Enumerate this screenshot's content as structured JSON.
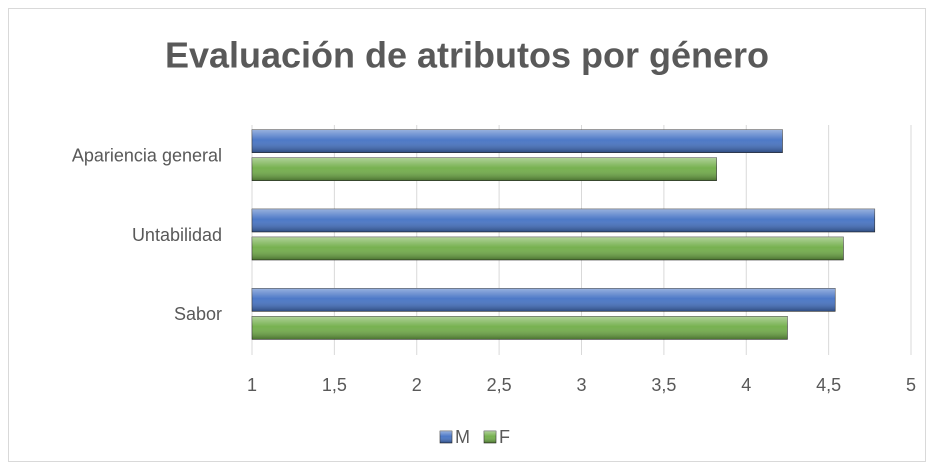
{
  "chart_data": {
    "type": "bar",
    "orientation": "horizontal",
    "title": "Evaluación de atributos por género",
    "categories": [
      "Apariencia general",
      "Untabilidad",
      "Sabor"
    ],
    "series": [
      {
        "name": "M",
        "color": "#4472c4",
        "values": [
          4.22,
          4.78,
          4.54
        ]
      },
      {
        "name": "F",
        "color": "#70ad47",
        "values": [
          3.82,
          4.59,
          4.25
        ]
      }
    ],
    "xlim": [
      1,
      5
    ],
    "xticks": [
      1,
      {
        "value": 1.5,
        "label": "1,5"
      },
      2,
      {
        "value": 2.5,
        "label": "2,5"
      },
      3,
      {
        "value": 3.5,
        "label": "3,5"
      },
      4,
      {
        "value": 4.5,
        "label": "4,5"
      },
      5
    ],
    "grid": true,
    "legend": "bottom"
  }
}
